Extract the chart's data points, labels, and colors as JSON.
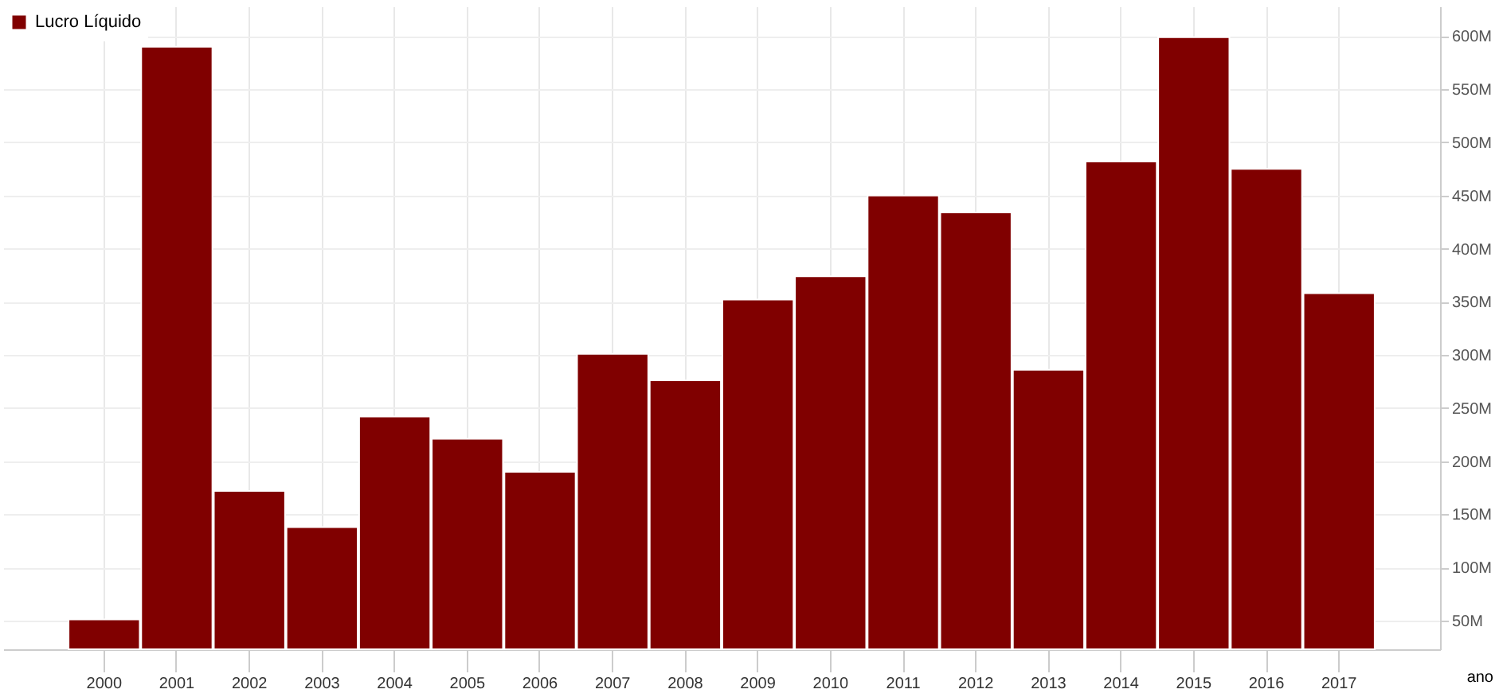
{
  "chart_data": {
    "type": "bar",
    "categories": [
      "2000",
      "2001",
      "2002",
      "2003",
      "2004",
      "2005",
      "2006",
      "2007",
      "2008",
      "2009",
      "2010",
      "2011",
      "2012",
      "2013",
      "2014",
      "2015",
      "2016",
      "2017"
    ],
    "series": [
      {
        "name": "Lucro Líquido",
        "color": "#800000",
        "values": [
          51,
          590,
          172,
          138,
          242,
          221,
          190,
          301,
          276,
          352,
          374,
          450,
          434,
          286,
          482,
          599,
          475,
          358
        ]
      }
    ],
    "xlabel": "ano",
    "ylim": [
      23,
      628
    ],
    "yticks": [
      {
        "value": 50,
        "label": "50M"
      },
      {
        "value": 100,
        "label": "100M"
      },
      {
        "value": 150,
        "label": "150M"
      },
      {
        "value": 200,
        "label": "200M"
      },
      {
        "value": 250,
        "label": "250M"
      },
      {
        "value": 300,
        "label": "300M"
      },
      {
        "value": 350,
        "label": "350M"
      },
      {
        "value": 400,
        "label": "400M"
      },
      {
        "value": 450,
        "label": "450M"
      },
      {
        "value": 500,
        "label": "500M"
      },
      {
        "value": 550,
        "label": "550M"
      },
      {
        "value": 600,
        "label": "600M"
      }
    ],
    "grid": true,
    "legend": "top left"
  }
}
